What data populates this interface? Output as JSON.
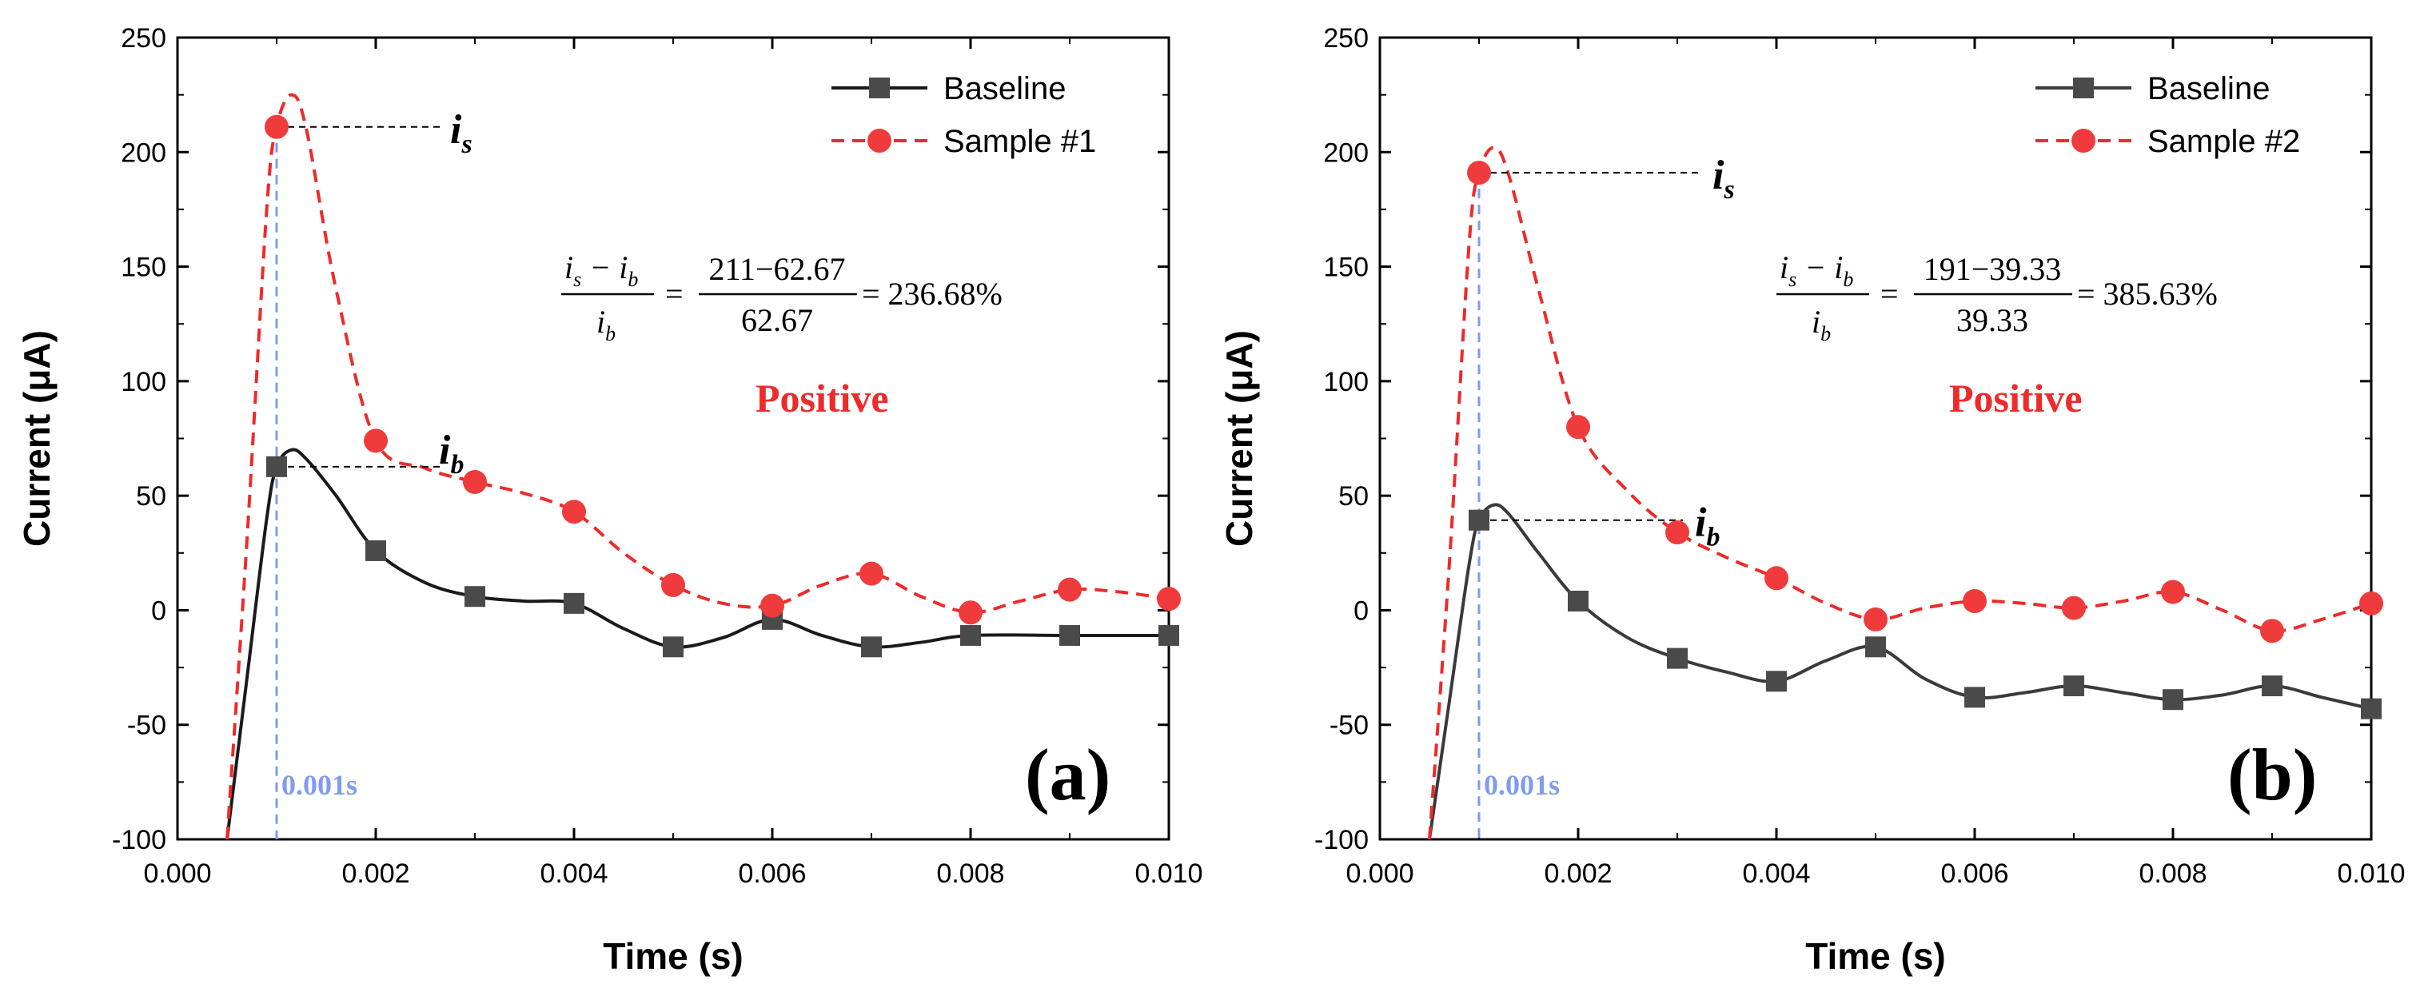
{
  "chart_data": [
    {
      "type": "line",
      "panel": "(a)",
      "xlabel": "Time (s)",
      "ylabel": "Current (μA)",
      "xlim": [
        0,
        0.01
      ],
      "ylim": [
        -100,
        250
      ],
      "xticks": [
        "0.000",
        "0.002",
        "0.004",
        "0.006",
        "0.008",
        "0.010"
      ],
      "yticks": [
        "-100",
        "-50",
        "0",
        "50",
        "100",
        "150",
        "200",
        "250"
      ],
      "legend_position": "top-right",
      "series": [
        {
          "name": "Baseline",
          "marker": "square",
          "line": "solid",
          "color": "#1a1a1a",
          "marker_color": "#4a4a4a",
          "x": [
            0.001,
            0.002,
            0.003,
            0.004,
            0.005,
            0.006,
            0.007,
            0.008,
            0.009,
            0.01
          ],
          "y": [
            62.67,
            26,
            6,
            3,
            -16,
            -4,
            -16,
            -11,
            -11,
            -11
          ],
          "curve_points": [
            [
              0.0005,
              -100
            ],
            [
              0.0007,
              -30
            ],
            [
              0.0009,
              40
            ],
            [
              0.001,
              62.67
            ],
            [
              0.00115,
              70
            ],
            [
              0.0013,
              66
            ],
            [
              0.0016,
              50
            ],
            [
              0.002,
              26
            ],
            [
              0.0025,
              12
            ],
            [
              0.003,
              6
            ],
            [
              0.0035,
              4
            ],
            [
              0.004,
              3
            ],
            [
              0.0045,
              -8
            ],
            [
              0.005,
              -16
            ],
            [
              0.0055,
              -12
            ],
            [
              0.006,
              -4
            ],
            [
              0.0065,
              -11
            ],
            [
              0.007,
              -16
            ],
            [
              0.0075,
              -14
            ],
            [
              0.008,
              -11
            ],
            [
              0.009,
              -11
            ],
            [
              0.01,
              -11
            ]
          ]
        },
        {
          "name": "Sample #1",
          "marker": "circle",
          "line": "dashed",
          "color": "#ee2a2a",
          "marker_color": "#ef3b3b",
          "x": [
            0.001,
            0.002,
            0.003,
            0.004,
            0.005,
            0.006,
            0.007,
            0.008,
            0.009,
            0.01
          ],
          "y": [
            211,
            74,
            56,
            43,
            11,
            2,
            16,
            -1,
            9,
            5
          ],
          "curve_points": [
            [
              0.0005,
              -100
            ],
            [
              0.0007,
              30
            ],
            [
              0.0009,
              175
            ],
            [
              0.001,
              211
            ],
            [
              0.00115,
              225
            ],
            [
              0.0013,
              210
            ],
            [
              0.0016,
              140
            ],
            [
              0.002,
              74
            ],
            [
              0.0025,
              62
            ],
            [
              0.003,
              56
            ],
            [
              0.0035,
              51
            ],
            [
              0.004,
              43
            ],
            [
              0.0045,
              25
            ],
            [
              0.005,
              11
            ],
            [
              0.0055,
              3
            ],
            [
              0.006,
              2
            ],
            [
              0.0065,
              11
            ],
            [
              0.007,
              16
            ],
            [
              0.0075,
              6
            ],
            [
              0.008,
              -1
            ],
            [
              0.0085,
              4
            ],
            [
              0.009,
              9
            ],
            [
              0.0095,
              8
            ],
            [
              0.01,
              5
            ]
          ]
        }
      ],
      "annotations": {
        "is_label": "i",
        "is_sub": "s",
        "ib_label": "i",
        "ib_sub": "b",
        "formula_num_left": "i",
        "formula_num_s": "s",
        "formula_minus": "−",
        "formula_num_right": "i",
        "formula_num_b": "b",
        "formula_den": "i",
        "formula_den_b": "b",
        "formula_frac2_num": "211−62.67",
        "formula_frac2_den": "62.67",
        "formula_equals": "=",
        "formula_result": "= 236.68%",
        "positive_label": "Positive",
        "time_marker": "0.001s",
        "is_value": 211,
        "ib_value": 62.67,
        "marker_time": 0.001
      }
    },
    {
      "type": "line",
      "panel": "(b)",
      "xlabel": "Time (s)",
      "ylabel": "Current (μA)",
      "xlim": [
        0,
        0.01
      ],
      "ylim": [
        -100,
        250
      ],
      "xticks": [
        "0.000",
        "0.002",
        "0.004",
        "0.006",
        "0.008",
        "0.010"
      ],
      "yticks": [
        "-100",
        "-50",
        "0",
        "50",
        "100",
        "150",
        "200",
        "250"
      ],
      "legend_position": "top-right",
      "series": [
        {
          "name": "Baseline",
          "marker": "square",
          "line": "solid",
          "color": "#3a3a3a",
          "marker_color": "#4a4a4a",
          "x": [
            0.001,
            0.002,
            0.003,
            0.004,
            0.005,
            0.006,
            0.007,
            0.008,
            0.009,
            0.01
          ],
          "y": [
            39.33,
            4,
            -21,
            -31,
            -16,
            -38,
            -33,
            -39,
            -33,
            -43
          ],
          "curve_points": [
            [
              0.0005,
              -100
            ],
            [
              0.0007,
              -40
            ],
            [
              0.0009,
              20
            ],
            [
              0.001,
              39.33
            ],
            [
              0.00115,
              46
            ],
            [
              0.0013,
              42
            ],
            [
              0.0016,
              25
            ],
            [
              0.002,
              4
            ],
            [
              0.0025,
              -12
            ],
            [
              0.003,
              -21
            ],
            [
              0.0035,
              -27
            ],
            [
              0.004,
              -31
            ],
            [
              0.0045,
              -22
            ],
            [
              0.005,
              -16
            ],
            [
              0.0055,
              -30
            ],
            [
              0.006,
              -38
            ],
            [
              0.0065,
              -36
            ],
            [
              0.007,
              -33
            ],
            [
              0.0075,
              -36
            ],
            [
              0.008,
              -39
            ],
            [
              0.0085,
              -37
            ],
            [
              0.009,
              -33
            ],
            [
              0.0095,
              -38
            ],
            [
              0.01,
              -43
            ]
          ]
        },
        {
          "name": "Sample #2",
          "marker": "circle",
          "line": "dashed",
          "color": "#ee2a2a",
          "marker_color": "#ef3b3b",
          "x": [
            0.001,
            0.002,
            0.003,
            0.004,
            0.005,
            0.006,
            0.007,
            0.008,
            0.009,
            0.01
          ],
          "y": [
            191,
            80,
            34,
            14,
            -4,
            4,
            1,
            8,
            -9,
            3
          ],
          "curve_points": [
            [
              0.0005,
              -100
            ],
            [
              0.0007,
              20
            ],
            [
              0.0009,
              160
            ],
            [
              0.001,
              191
            ],
            [
              0.00115,
              202
            ],
            [
              0.0013,
              190
            ],
            [
              0.0016,
              140
            ],
            [
              0.002,
              80
            ],
            [
              0.0025,
              52
            ],
            [
              0.003,
              34
            ],
            [
              0.0035,
              23
            ],
            [
              0.004,
              14
            ],
            [
              0.0045,
              3
            ],
            [
              0.005,
              -4
            ],
            [
              0.0055,
              1
            ],
            [
              0.006,
              4
            ],
            [
              0.0065,
              3
            ],
            [
              0.007,
              1
            ],
            [
              0.0075,
              4
            ],
            [
              0.008,
              8
            ],
            [
              0.0085,
              0
            ],
            [
              0.009,
              -9
            ],
            [
              0.0095,
              -4
            ],
            [
              0.01,
              3
            ]
          ]
        }
      ],
      "annotations": {
        "is_label": "i",
        "is_sub": "s",
        "ib_label": "i",
        "ib_sub": "b",
        "formula_num_left": "i",
        "formula_num_s": "s",
        "formula_minus": "−",
        "formula_num_right": "i",
        "formula_num_b": "b",
        "formula_den": "i",
        "formula_den_b": "b",
        "formula_frac2_num": "191−39.33",
        "formula_frac2_den": "39.33",
        "formula_equals": "=",
        "formula_result": "= 385.63%",
        "positive_label": "Positive",
        "time_marker": "0.001s",
        "is_value": 191,
        "ib_value": 39.33,
        "marker_time": 0.001
      }
    }
  ],
  "colors": {
    "axis": "#000000",
    "positive": "#ee2a2a",
    "marker_line": "#7f9cf0",
    "guide": "#000000"
  }
}
